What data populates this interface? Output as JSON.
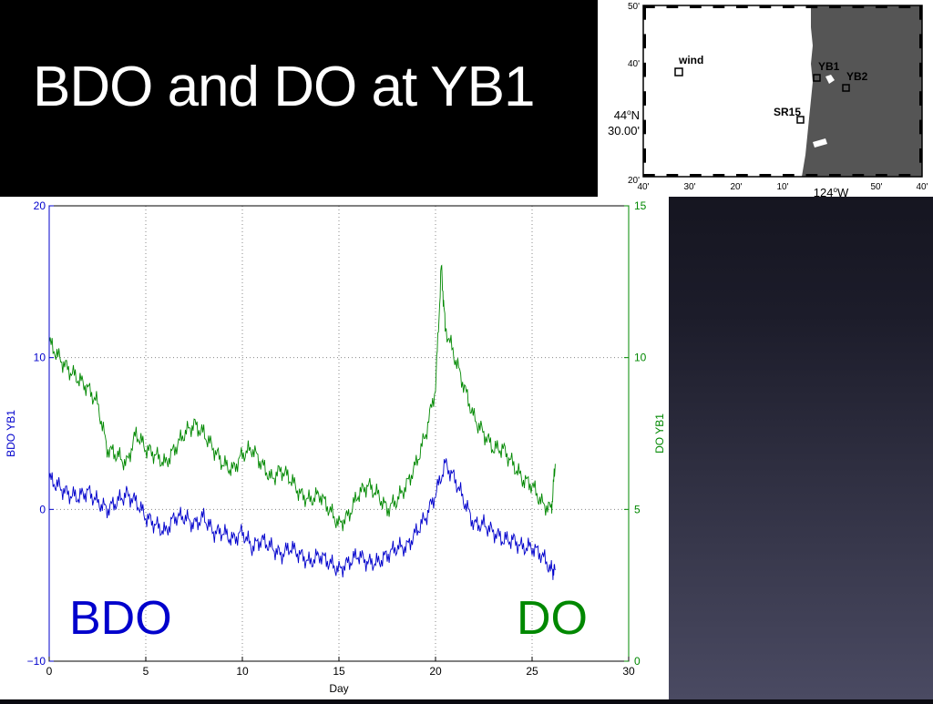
{
  "title": "BDO and DO at YB1",
  "map": {
    "lat_ticks": [
      "50'",
      "40'",
      "30.00'",
      "20'"
    ],
    "lat_deg_label": "44",
    "lat_deg_suffix": "N",
    "lon_ticks": [
      "40'",
      "30'",
      "20'",
      "10'",
      "50'",
      "40'"
    ],
    "lon_deg_label": "124",
    "lon_deg_suffix": "W",
    "stations": [
      {
        "name": "wind"
      },
      {
        "name": "YB1"
      },
      {
        "name": "YB2"
      },
      {
        "name": "SR15"
      }
    ],
    "colors": {
      "ocean": "#ffffff",
      "land": "#555555",
      "station": "#000000"
    }
  },
  "chart_data": {
    "type": "line",
    "xlabel": "Day",
    "ylabel_left": "BDO YB1",
    "ylabel_right": "DO YB1",
    "xlim": [
      0,
      30
    ],
    "ylim_left": [
      -10,
      20
    ],
    "ylim_right": [
      0,
      15
    ],
    "x_ticks": [
      "0",
      "5",
      "10",
      "15",
      "20",
      "25",
      "30"
    ],
    "y_ticks_left": [
      "20",
      "10",
      "0",
      "−10"
    ],
    "y_ticks_right": [
      "15",
      "10",
      "5",
      "0"
    ],
    "grid": true,
    "series": [
      {
        "name": "BDO",
        "axis": "left",
        "color": "#0000cc",
        "x": [
          0,
          0.5,
          1,
          1.5,
          2,
          2.5,
          3,
          3.5,
          4,
          4.5,
          5,
          5.5,
          6,
          6.5,
          7,
          7.5,
          8,
          8.5,
          9,
          9.5,
          10,
          10.5,
          11,
          11.5,
          12,
          12.5,
          13,
          13.5,
          14,
          14.5,
          15,
          15.5,
          16,
          16.5,
          17,
          17.5,
          18,
          18.5,
          19,
          19.5,
          20,
          20.5,
          21,
          21.5,
          22,
          22.5,
          23,
          23.5,
          24,
          24.5,
          25,
          25.5,
          26,
          26.2
        ],
        "y": [
          2,
          1.5,
          1,
          0.8,
          1.2,
          0.5,
          0,
          0.5,
          1,
          0.5,
          -0.5,
          -1,
          -1.5,
          -0.5,
          -0.5,
          -1,
          -0.5,
          -1.5,
          -1.5,
          -2,
          -1.5,
          -2.5,
          -2,
          -2.5,
          -3,
          -2.5,
          -3,
          -3.5,
          -3,
          -3.5,
          -4,
          -3.5,
          -3,
          -3.5,
          -3.5,
          -3,
          -2.5,
          -2.5,
          -1.5,
          -0.5,
          1,
          3,
          2,
          0.5,
          -1,
          -1,
          -1.5,
          -2,
          -2,
          -2.5,
          -2.5,
          -3,
          -4,
          -4
        ]
      },
      {
        "name": "DO",
        "axis": "right",
        "color": "#008800",
        "x": [
          0,
          0.5,
          1,
          1.5,
          2,
          2.5,
          3,
          3.5,
          4,
          4.5,
          5,
          5.5,
          6,
          6.5,
          7,
          7.5,
          8,
          8.5,
          9,
          9.5,
          10,
          10.5,
          11,
          11.5,
          12,
          12.5,
          13,
          13.5,
          14,
          14.5,
          15,
          15.5,
          16,
          16.5,
          17,
          17.5,
          18,
          18.5,
          19,
          19.5,
          20,
          20.3,
          20.5,
          21,
          21.5,
          22,
          22.5,
          23,
          23.5,
          24,
          24.5,
          25,
          25.5,
          26,
          26.2
        ],
        "y": [
          10.5,
          10,
          9.6,
          9.3,
          9,
          8.5,
          7,
          6.8,
          6.5,
          7.5,
          7,
          6.8,
          6.5,
          7,
          7.5,
          7.8,
          7.5,
          7,
          6.5,
          6.3,
          6.8,
          7,
          6.5,
          6,
          6.3,
          6,
          5.5,
          5.3,
          5.5,
          5,
          4.5,
          4.8,
          5.5,
          5.8,
          5.5,
          5,
          5.3,
          5.8,
          6.5,
          7.5,
          9,
          13,
          11,
          10,
          9,
          8,
          7.5,
          7,
          7,
          6.5,
          6,
          5.8,
          5.2,
          5,
          6.5
        ]
      }
    ],
    "annotations": [
      {
        "text": "BDO",
        "color": "#0000cc"
      },
      {
        "text": "DO",
        "color": "#008800"
      }
    ]
  }
}
